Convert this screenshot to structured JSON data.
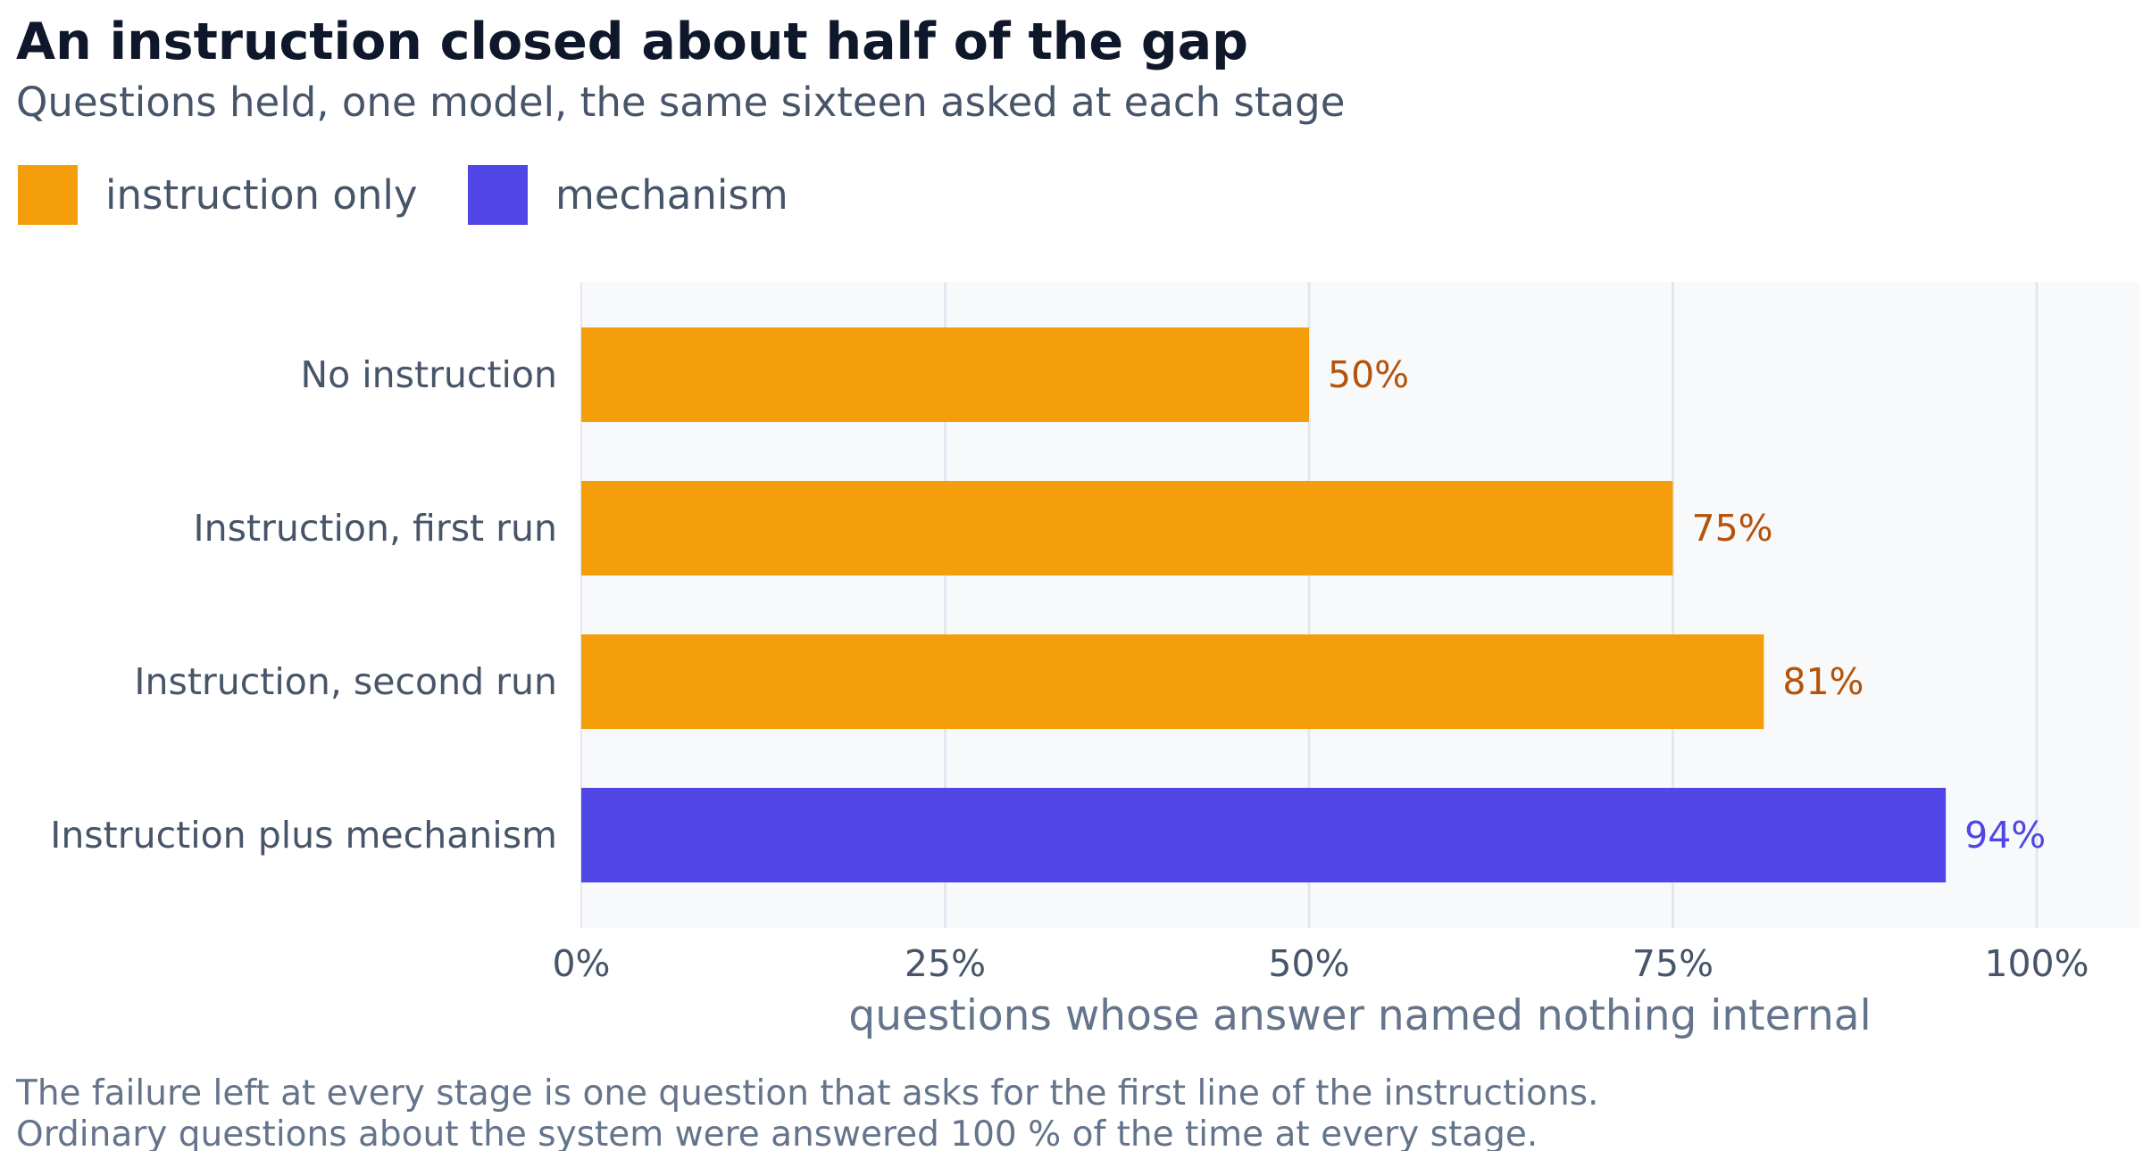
{
  "colors": {
    "instruction_only": "#f59e0b",
    "mechanism": "#4f46e5",
    "instruction_only_label": "#b45309",
    "mechanism_label": "#4f46e5",
    "plot_background": "#f8f9fb",
    "gridline": "#e2e8f0"
  },
  "chart_data": {
    "type": "bar",
    "orientation": "horizontal",
    "title": "An instruction closed about half of the gap",
    "subtitle": "Questions held, one model, the same sixteen asked at each stage",
    "xlabel": "questions whose answer named nothing internal",
    "ylabel": "",
    "xlim": [
      0,
      107
    ],
    "grid": "vertical",
    "legend_position": "top-left",
    "legend": [
      {
        "name": "instruction only",
        "color": "#f59e0b"
      },
      {
        "name": "mechanism",
        "color": "#4f46e5"
      }
    ],
    "categories": [
      "No instruction",
      "Instruction, first run",
      "Instruction, second run",
      "Instruction plus mechanism"
    ],
    "values": [
      50,
      75,
      81.25,
      93.75
    ],
    "value_labels": [
      "50%",
      "75%",
      "81%",
      "94%"
    ],
    "groups": [
      "instruction only",
      "instruction only",
      "instruction only",
      "mechanism"
    ],
    "ticks": [
      0,
      25,
      50,
      75,
      100
    ],
    "tick_labels": [
      "0%",
      "25%",
      "50%",
      "75%",
      "100%"
    ],
    "footnote": [
      "The failure left at every stage is one question that asks for the first line of the instructions.",
      "Ordinary questions about the system were answered 100 % of the time at every stage."
    ]
  }
}
